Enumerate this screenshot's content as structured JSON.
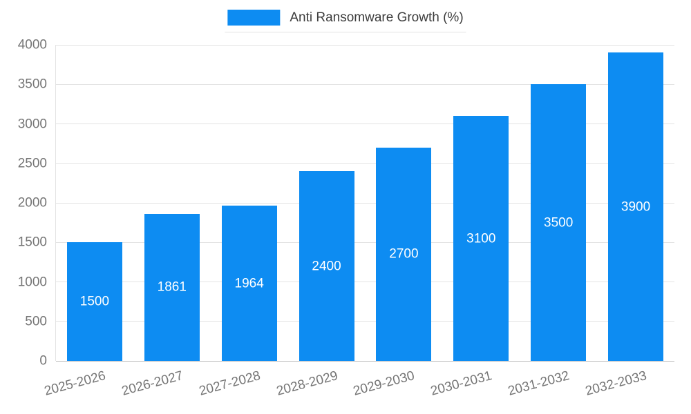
{
  "chart_data": {
    "type": "bar",
    "title": "Anti Ransomware Growth (%)",
    "categories": [
      "2025-2026",
      "2026-2027",
      "2027-2028",
      "2028-2029",
      "2029-2030",
      "2030-2031",
      "2031-2032",
      "2032-2033"
    ],
    "values": [
      1500,
      1861,
      1964,
      2400,
      2700,
      3100,
      3500,
      3900
    ],
    "xlabel": "",
    "ylabel": "",
    "ylim": [
      0,
      4000
    ],
    "ytick_step": 500,
    "grid": true,
    "legend_position": "top",
    "colors": {
      "bar": "#0d8cf2",
      "value_label": "#ffffff",
      "axis_label": "#757575",
      "gridline": "#e3e3e3",
      "legend_text": "#3c3c3c"
    }
  }
}
